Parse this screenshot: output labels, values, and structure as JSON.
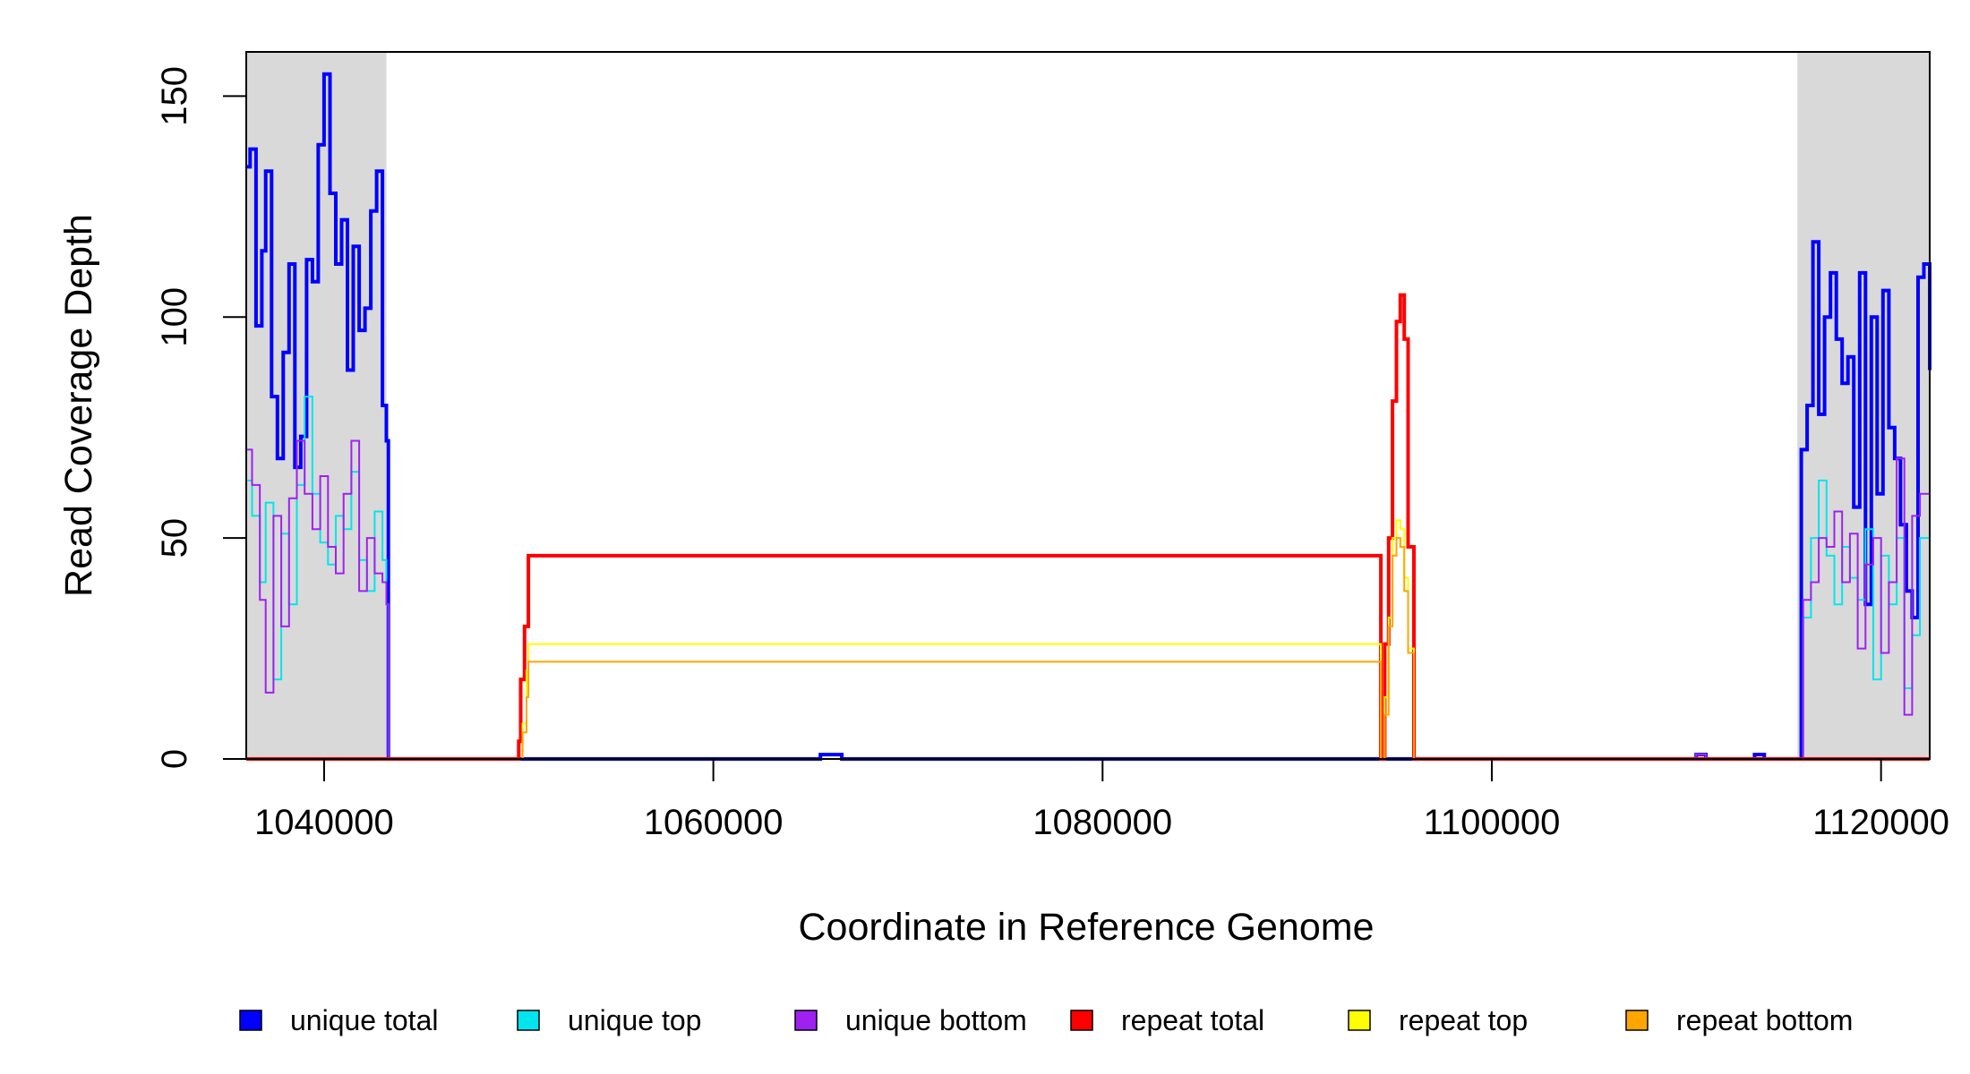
{
  "chart_data": {
    "type": "line",
    "title": "",
    "xlabel": "Coordinate in Reference Genome",
    "ylabel": "Read Coverage Depth",
    "xlim": [
      1036000,
      1122500
    ],
    "ylim": [
      0,
      160
    ],
    "x_ticks": [
      1040000,
      1060000,
      1080000,
      1100000,
      1120000
    ],
    "x_tick_labels": [
      "1040000",
      "1060000",
      "1080000",
      "1100000",
      "1120000"
    ],
    "y_ticks": [
      0,
      50,
      100,
      150
    ],
    "y_tick_labels": [
      "0",
      "50",
      "100",
      "150"
    ],
    "grid": false,
    "legend_position": "bottom",
    "shaded_regions": [
      {
        "from": 1036000,
        "to": 1043200,
        "color": "#d9d9d9"
      },
      {
        "from": 1115700,
        "to": 1122500,
        "color": "#d9d9d9"
      }
    ],
    "series": [
      {
        "name": "unique total",
        "color": "#0000ff",
        "width": 4,
        "x": [
          1036000,
          1036200,
          1036500,
          1036800,
          1037000,
          1037300,
          1037600,
          1037900,
          1038200,
          1038500,
          1038800,
          1039100,
          1039400,
          1039700,
          1040000,
          1040300,
          1040600,
          1040900,
          1041200,
          1041500,
          1041800,
          1042100,
          1042400,
          1042700,
          1043000,
          1043200,
          1043300,
          1044000,
          1060000,
          1065500,
          1066000,
          1066600,
          1080000,
          1110000,
          1110500,
          1111000,
          1113000,
          1113500,
          1114000,
          1115700,
          1115900,
          1116200,
          1116500,
          1116800,
          1117100,
          1117400,
          1117700,
          1118000,
          1118300,
          1118600,
          1118900,
          1119200,
          1119500,
          1119800,
          1120100,
          1120400,
          1120700,
          1121000,
          1121300,
          1121600,
          1121900,
          1122200,
          1122500
        ],
        "y": [
          134,
          138,
          98,
          115,
          133,
          82,
          68,
          92,
          112,
          66,
          73,
          113,
          108,
          139,
          155,
          128,
          112,
          122,
          88,
          116,
          97,
          102,
          124,
          133,
          80,
          72,
          0,
          0,
          0,
          1,
          1,
          0,
          0,
          0,
          1,
          0,
          0,
          1,
          0,
          0,
          70,
          80,
          117,
          78,
          100,
          110,
          95,
          85,
          91,
          57,
          110,
          35,
          100,
          60,
          106,
          75,
          68,
          53,
          38,
          32,
          109,
          112,
          88
        ],
        "baseline": 0
      },
      {
        "name": "unique top",
        "color": "#00e5ee",
        "width": 2,
        "x": [
          1036000,
          1036300,
          1036700,
          1037000,
          1037400,
          1037800,
          1038200,
          1038600,
          1039000,
          1039400,
          1039800,
          1040200,
          1040600,
          1041000,
          1041400,
          1041800,
          1042200,
          1042600,
          1043000,
          1043200,
          1043300,
          1080000,
          1110000,
          1110500,
          1111000,
          1115700,
          1116000,
          1116400,
          1116800,
          1117200,
          1117600,
          1118000,
          1118400,
          1118800,
          1119200,
          1119600,
          1120000,
          1120400,
          1120800,
          1121200,
          1121600,
          1122000,
          1122500
        ],
        "y": [
          63,
          55,
          40,
          58,
          18,
          51,
          35,
          62,
          82,
          60,
          49,
          44,
          55,
          52,
          65,
          45,
          38,
          56,
          45,
          35,
          0,
          0,
          0,
          1,
          0,
          0,
          32,
          50,
          63,
          46,
          35,
          48,
          41,
          36,
          52,
          18,
          46,
          35,
          50,
          16,
          28,
          50,
          28
        ],
        "baseline": 0
      },
      {
        "name": "unique bottom",
        "color": "#a020f0",
        "width": 2,
        "x": [
          1036000,
          1036300,
          1036700,
          1037000,
          1037400,
          1037800,
          1038200,
          1038600,
          1039000,
          1039400,
          1039800,
          1040200,
          1040600,
          1041000,
          1041400,
          1041800,
          1042200,
          1042600,
          1043000,
          1043200,
          1043300,
          1080000,
          1110000,
          1110500,
          1111000,
          1115700,
          1116000,
          1116400,
          1116800,
          1117200,
          1117600,
          1118000,
          1118400,
          1118800,
          1119200,
          1119600,
          1120000,
          1120400,
          1120800,
          1121200,
          1121600,
          1122000,
          1122500
        ],
        "y": [
          70,
          62,
          36,
          15,
          55,
          30,
          59,
          72,
          60,
          52,
          64,
          48,
          42,
          60,
          72,
          38,
          50,
          42,
          40,
          35,
          0,
          0,
          0,
          1,
          0,
          0,
          36,
          40,
          50,
          48,
          56,
          40,
          51,
          25,
          44,
          50,
          24,
          40,
          68,
          10,
          55,
          60,
          50
        ],
        "baseline": 0
      },
      {
        "name": "repeat total",
        "color": "#ff0000",
        "width": 4,
        "x": [
          1036000,
          1049900,
          1050000,
          1050100,
          1050300,
          1050500,
          1094300,
          1094500,
          1094700,
          1094900,
          1095100,
          1095300,
          1095500,
          1095700,
          1096000,
          1122500
        ],
        "y": [
          0,
          0,
          4,
          18,
          30,
          46,
          0,
          26,
          50,
          81,
          99,
          105,
          95,
          48,
          0,
          0
        ],
        "baseline": 0
      },
      {
        "name": "repeat top",
        "color": "#ffff00",
        "width": 2,
        "x": [
          1036000,
          1050000,
          1050200,
          1050400,
          1050500,
          1094300,
          1094500,
          1094700,
          1094900,
          1095100,
          1095300,
          1095500,
          1095700,
          1096000,
          1122500
        ],
        "y": [
          0,
          0,
          8,
          20,
          26,
          0,
          14,
          32,
          50,
          54,
          52,
          41,
          25,
          0,
          0
        ],
        "baseline": 0
      },
      {
        "name": "repeat bottom",
        "color": "#ffa500",
        "width": 2,
        "x": [
          1036000,
          1050000,
          1050200,
          1050400,
          1050500,
          1094300,
          1094500,
          1094700,
          1094900,
          1095100,
          1095300,
          1095500,
          1095700,
          1096000,
          1122500
        ],
        "y": [
          0,
          0,
          6,
          14,
          22,
          0,
          10,
          30,
          46,
          50,
          48,
          38,
          24,
          0,
          0
        ],
        "baseline": 0
      }
    ]
  }
}
